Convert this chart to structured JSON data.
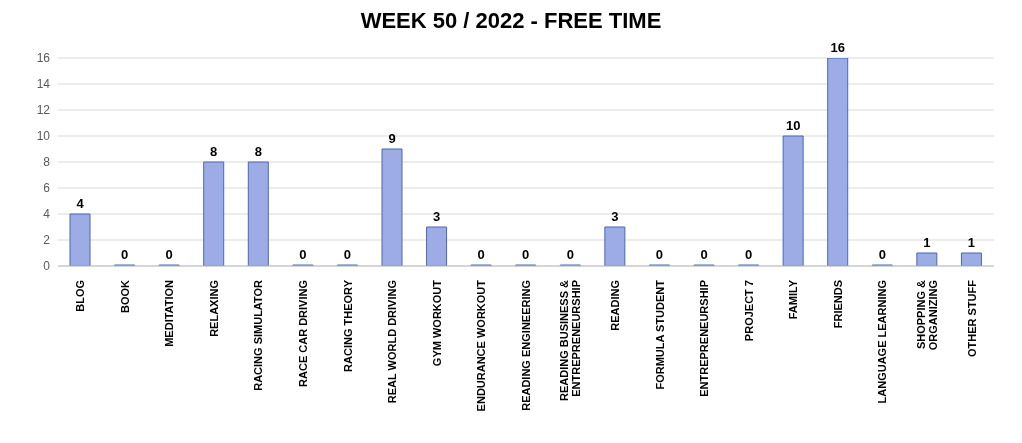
{
  "chart_data": {
    "type": "bar",
    "title": "WEEK 50 / 2022 - FREE TIME",
    "categories": [
      "BLOG",
      "BOOK",
      "MEDITATION",
      "RELAXING",
      "RACING SIMULATOR",
      "RACE CAR DRIVING",
      "RACING THEORY",
      "REAL WORLD DRIVING",
      "GYM WORKOUT",
      "ENDURANCE WORKOUT",
      "READING ENGINEERING",
      "READING BUSINESS & ENTREPRENEURSHIP",
      "READING",
      "FORMULA STUDENT",
      "ENTREPRENEURSHIP",
      "PROJECT 7",
      "FAMILY",
      "FRIENDS",
      "LANGUAGE LEARNING",
      "SHOPPING & ORGANIZING",
      "OTHER STUFF"
    ],
    "values": [
      4,
      0,
      0,
      8,
      8,
      0,
      0,
      9,
      3,
      0,
      0,
      0,
      3,
      0,
      0,
      0,
      10,
      16,
      0,
      1,
      1
    ],
    "color": "#9dace4",
    "ylim": [
      0,
      16
    ],
    "yticks": [
      0,
      2,
      4,
      6,
      8,
      10,
      12,
      14,
      16
    ],
    "grid": "y",
    "data_labels": true
  }
}
